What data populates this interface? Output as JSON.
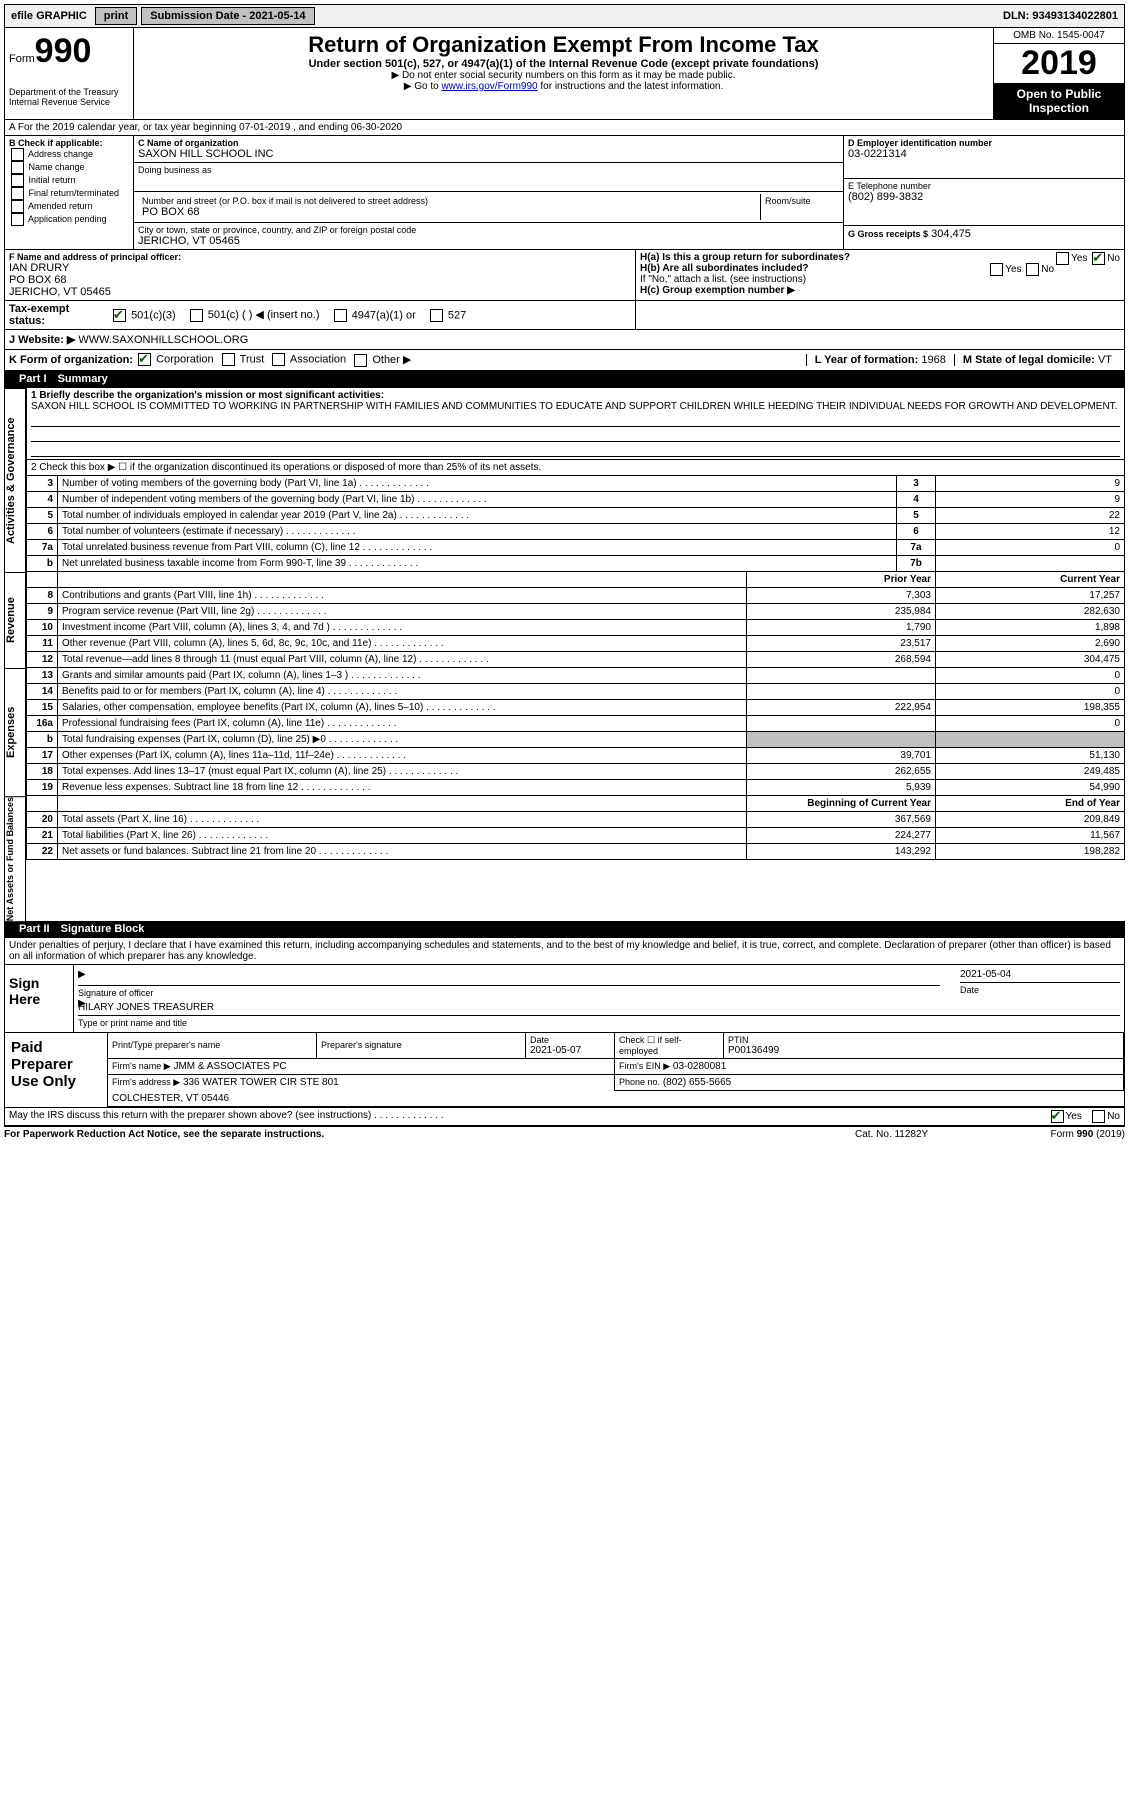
{
  "topbar": {
    "efile": "efile GRAPHIC",
    "print": "print",
    "subdate_label": "Submission Date -",
    "subdate": "2021-05-14",
    "dln": "DLN: 93493134022801"
  },
  "header": {
    "form_word": "Form",
    "form_num": "990",
    "dept": "Department of the Treasury",
    "irs": "Internal Revenue Service",
    "title": "Return of Organization Exempt From Income Tax",
    "sub": "Under section 501(c), 527, or 4947(a)(1) of the Internal Revenue Code (except private foundations)",
    "sub2a": "▶ Do not enter social security numbers on this form as it may be made public.",
    "sub2b": "▶ Go to ",
    "link": "www.irs.gov/Form990",
    "sub2c": " for instructions and the latest information.",
    "omb": "OMB No. 1545-0047",
    "year": "2019",
    "open_pub": "Open to Public Inspection"
  },
  "rowA": "A For the 2019 calendar year, or tax year beginning 07-01-2019    , and ending 06-30-2020",
  "B": {
    "label": "B Check if applicable:",
    "items": [
      "Address change",
      "Name change",
      "Initial return",
      "Final return/terminated",
      "Amended return",
      "Application pending"
    ]
  },
  "C": {
    "name_label": "C Name of organization",
    "name": "SAXON HILL SCHOOL INC",
    "dba_label": "Doing business as",
    "dba": "",
    "street_label": "Number and street (or P.O. box if mail is not delivered to street address)",
    "street": "PO BOX 68",
    "room_label": "Room/suite",
    "city_label": "City or town, state or province, country, and ZIP or foreign postal code",
    "city": "JERICHO, VT  05465"
  },
  "D": {
    "label": "D Employer identification number",
    "value": "03-0221314"
  },
  "E": {
    "label": "E Telephone number",
    "value": "(802) 899-3832"
  },
  "G": {
    "label": "G Gross receipts $",
    "value": "304,475"
  },
  "F": {
    "label": "F  Name and address of principal officer:",
    "name": "IAN DRURY",
    "addr1": "PO BOX 68",
    "addr2": "JERICHO, VT  05465"
  },
  "H": {
    "a": "H(a)  Is this a group return for subordinates?",
    "b": "H(b)  Are all subordinates included?",
    "b_note": "If \"No,\" attach a list. (see instructions)",
    "c": "H(c)  Group exemption number ▶",
    "yes": "Yes",
    "no": "No"
  },
  "I": {
    "label": "Tax-exempt status:",
    "opts": [
      "501(c)(3)",
      "501(c) (   ) ◀ (insert no.)",
      "4947(a)(1) or",
      "527"
    ]
  },
  "J": {
    "label": "J    Website: ▶",
    "value": "WWW.SAXONHILLSCHOOL.ORG"
  },
  "K": {
    "label": "K Form of organization:",
    "opts": [
      "Corporation",
      "Trust",
      "Association",
      "Other ▶"
    ]
  },
  "L": {
    "label": "L Year of formation:",
    "value": "1968"
  },
  "M": {
    "label": "M State of legal domicile:",
    "value": "VT"
  },
  "partI": {
    "num": "Part I",
    "title": "Summary"
  },
  "summary": {
    "q1_label": "1  Briefly describe the organization's mission or most significant activities:",
    "q1_text": "SAXON HILL SCHOOL IS COMMITTED TO WORKING IN PARTNERSHIP WITH FAMILIES AND COMMUNITIES TO EDUCATE AND SUPPORT CHILDREN WHILE HEEDING THEIR INDIVIDUAL NEEDS FOR GROWTH AND DEVELOPMENT.",
    "q2": "2   Check this box ▶ ☐  if the organization discontinued its operations or disposed of more than 25% of its net assets.",
    "side_ag": "Activities & Governance",
    "side_rev": "Revenue",
    "side_exp": "Expenses",
    "side_net": "Net Assets or Fund Balances"
  },
  "lines_ag": [
    {
      "n": "3",
      "d": "Number of voting members of the governing body (Part VI, line 1a)",
      "box": "3",
      "v": "9"
    },
    {
      "n": "4",
      "d": "Number of independent voting members of the governing body (Part VI, line 1b)",
      "box": "4",
      "v": "9"
    },
    {
      "n": "5",
      "d": "Total number of individuals employed in calendar year 2019 (Part V, line 2a)",
      "box": "5",
      "v": "22"
    },
    {
      "n": "6",
      "d": "Total number of volunteers (estimate if necessary)",
      "box": "6",
      "v": "12"
    },
    {
      "n": "7a",
      "d": "Total unrelated business revenue from Part VIII, column (C), line 12",
      "box": "7a",
      "v": "0"
    },
    {
      "n": "b",
      "d": "Net unrelated business taxable income from Form 990-T, line 39",
      "box": "7b",
      "v": ""
    }
  ],
  "col_prior": "Prior Year",
  "col_curr": "Current Year",
  "lines_rev": [
    {
      "n": "8",
      "d": "Contributions and grants (Part VIII, line 1h)",
      "p": "7,303",
      "c": "17,257"
    },
    {
      "n": "9",
      "d": "Program service revenue (Part VIII, line 2g)",
      "p": "235,984",
      "c": "282,630"
    },
    {
      "n": "10",
      "d": "Investment income (Part VIII, column (A), lines 3, 4, and 7d )",
      "p": "1,790",
      "c": "1,898"
    },
    {
      "n": "11",
      "d": "Other revenue (Part VIII, column (A), lines 5, 6d, 8c, 9c, 10c, and 11e)",
      "p": "23,517",
      "c": "2,690"
    },
    {
      "n": "12",
      "d": "Total revenue—add lines 8 through 11 (must equal Part VIII, column (A), line 12)",
      "p": "268,594",
      "c": "304,475"
    }
  ],
  "lines_exp": [
    {
      "n": "13",
      "d": "Grants and similar amounts paid (Part IX, column (A), lines 1–3 )",
      "p": "",
      "c": "0"
    },
    {
      "n": "14",
      "d": "Benefits paid to or for members (Part IX, column (A), line 4)",
      "p": "",
      "c": "0"
    },
    {
      "n": "15",
      "d": "Salaries, other compensation, employee benefits (Part IX, column (A), lines 5–10)",
      "p": "222,954",
      "c": "198,355"
    },
    {
      "n": "16a",
      "d": "Professional fundraising fees (Part IX, column (A), line 11e)",
      "p": "",
      "c": "0"
    },
    {
      "n": "b",
      "d": "Total fundraising expenses (Part IX, column (D), line 25) ▶0",
      "p": "GRAY",
      "c": "GRAY"
    },
    {
      "n": "17",
      "d": "Other expenses (Part IX, column (A), lines 11a–11d, 11f–24e)",
      "p": "39,701",
      "c": "51,130"
    },
    {
      "n": "18",
      "d": "Total expenses. Add lines 13–17 (must equal Part IX, column (A), line 25)",
      "p": "262,655",
      "c": "249,485"
    },
    {
      "n": "19",
      "d": "Revenue less expenses. Subtract line 18 from line 12",
      "p": "5,939",
      "c": "54,990"
    }
  ],
  "col_begin": "Beginning of Current Year",
  "col_end": "End of Year",
  "lines_net": [
    {
      "n": "20",
      "d": "Total assets (Part X, line 16)",
      "p": "367,569",
      "c": "209,849"
    },
    {
      "n": "21",
      "d": "Total liabilities (Part X, line 26)",
      "p": "224,277",
      "c": "11,567"
    },
    {
      "n": "22",
      "d": "Net assets or fund balances. Subtract line 21 from line 20",
      "p": "143,292",
      "c": "198,282"
    }
  ],
  "partII": {
    "num": "Part II",
    "title": "Signature Block"
  },
  "sig": {
    "penalty": "Under penalties of perjury, I declare that I have examined this return, including accompanying schedules and statements, and to the best of my knowledge and belief, it is true, correct, and complete. Declaration of preparer (other than officer) is based on all information of which preparer has any knowledge.",
    "sign_here": "Sign Here",
    "sig_officer": "Signature of officer",
    "date_label": "Date",
    "date": "2021-05-04",
    "name": "HILARY JONES  TREASURER",
    "name_label": "Type or print name and title"
  },
  "paid": {
    "label": "Paid Preparer Use Only",
    "h1": "Print/Type preparer's name",
    "h2": "Preparer's signature",
    "h3": "Date",
    "h3v": "2021-05-07",
    "h4": "Check ☐ if self-employed",
    "h5": "PTIN",
    "h5v": "P00136499",
    "firm_label": "Firm's name    ▶",
    "firm": "JMM & ASSOCIATES PC",
    "ein_label": "Firm's EIN ▶",
    "ein": "03-0280081",
    "addr_label": "Firm's address ▶",
    "addr": "336 WATER TOWER CIR STE 801",
    "addr2": "COLCHESTER, VT  05446",
    "phone_label": "Phone no.",
    "phone": "(802) 655-5665",
    "discuss": "May the IRS discuss this return with the preparer shown above? (see instructions)"
  },
  "footer": {
    "f1": "For Paperwork Reduction Act Notice, see the separate instructions.",
    "f2": "Cat. No. 11282Y",
    "f3a": "Form ",
    "f3b": "990",
    "f3c": " (2019)"
  }
}
